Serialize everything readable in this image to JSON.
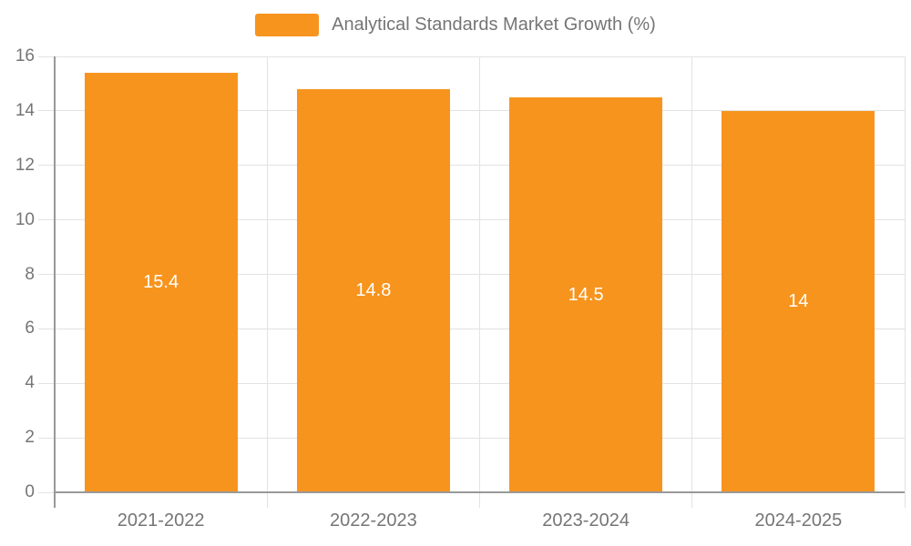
{
  "legend": {
    "label": "Analytical Standards Market Growth (%)"
  },
  "chart_data": {
    "type": "bar",
    "title": "",
    "xlabel": "",
    "ylabel": "",
    "categories": [
      "2021-2022",
      "2022-2023",
      "2023-2024",
      "2024-2025"
    ],
    "values": [
      15.4,
      14.8,
      14.5,
      14
    ],
    "value_labels": [
      "15.4",
      "14.8",
      "14.5",
      "14"
    ],
    "series_name": "Analytical Standards Market Growth (%)",
    "ylim": [
      0,
      16
    ],
    "yticks": [
      0,
      2,
      4,
      6,
      8,
      10,
      12,
      14,
      16
    ],
    "ytick_labels": [
      "0",
      "2",
      "4",
      "6",
      "8",
      "10",
      "12",
      "14",
      "16"
    ],
    "grid": true,
    "legend_position": "top-center",
    "colors": {
      "bar": "#F7941E",
      "value_label": "#FFFFFF",
      "gridline": "#E2E2E2",
      "axis_line": "#999999",
      "tick_text": "#757575",
      "background": "#FFFFFF"
    }
  }
}
